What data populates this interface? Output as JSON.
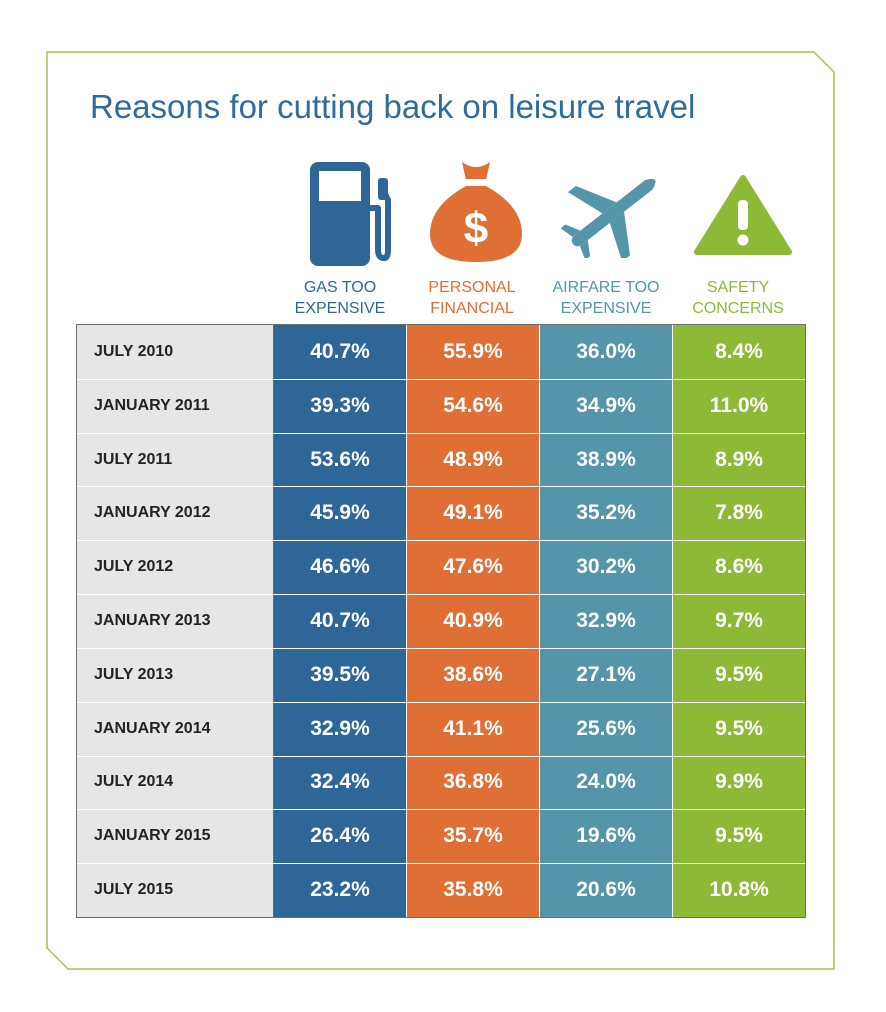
{
  "title": "Reasons for cutting back on leisure travel",
  "colors": {
    "gas": "#2e6797",
    "personal": "#e06f35",
    "airfare": "#5495aa",
    "safety": "#8dba36",
    "title": "#2f6c9c",
    "frame": "#a5c24b"
  },
  "icons": [
    "gas-pump-icon",
    "money-bag-icon",
    "airplane-icon",
    "warning-icon"
  ],
  "chart_data": {
    "type": "table",
    "title": "Reasons for cutting back on leisure travel",
    "columns": [
      {
        "key": "gas",
        "line1": "GAS TOO",
        "line2": "EXPENSIVE"
      },
      {
        "key": "personal",
        "line1": "PERSONAL",
        "line2": "FINANCIAL"
      },
      {
        "key": "airfare",
        "line1": "AIRFARE TOO",
        "line2": "EXPENSIVE"
      },
      {
        "key": "safety",
        "line1": "SAFETY",
        "line2": "CONCERNS"
      }
    ],
    "rows": [
      {
        "label": "JULY 2010",
        "values": [
          "40.7%",
          "55.9%",
          "36.0%",
          "8.4%"
        ]
      },
      {
        "label": "JANUARY 2011",
        "values": [
          "39.3%",
          "54.6%",
          "34.9%",
          "11.0%"
        ]
      },
      {
        "label": "JULY 2011",
        "values": [
          "53.6%",
          "48.9%",
          "38.9%",
          "8.9%"
        ]
      },
      {
        "label": "JANUARY 2012",
        "values": [
          "45.9%",
          "49.1%",
          "35.2%",
          "7.8%"
        ]
      },
      {
        "label": "JULY 2012",
        "values": [
          "46.6%",
          "47.6%",
          "30.2%",
          "8.6%"
        ]
      },
      {
        "label": "JANUARY 2013",
        "values": [
          "40.7%",
          "40.9%",
          "32.9%",
          "9.7%"
        ]
      },
      {
        "label": "JULY 2013",
        "values": [
          "39.5%",
          "38.6%",
          "27.1%",
          "9.5%"
        ]
      },
      {
        "label": "JANUARY 2014",
        "values": [
          "32.9%",
          "41.1%",
          "25.6%",
          "9.5%"
        ]
      },
      {
        "label": "JULY 2014",
        "values": [
          "32.4%",
          "36.8%",
          "24.0%",
          "9.9%"
        ]
      },
      {
        "label": "JANUARY 2015",
        "values": [
          "26.4%",
          "35.7%",
          "19.6%",
          "9.5%"
        ]
      },
      {
        "label": "JULY 2015",
        "values": [
          "23.2%",
          "35.8%",
          "20.6%",
          "10.8%"
        ]
      }
    ]
  }
}
